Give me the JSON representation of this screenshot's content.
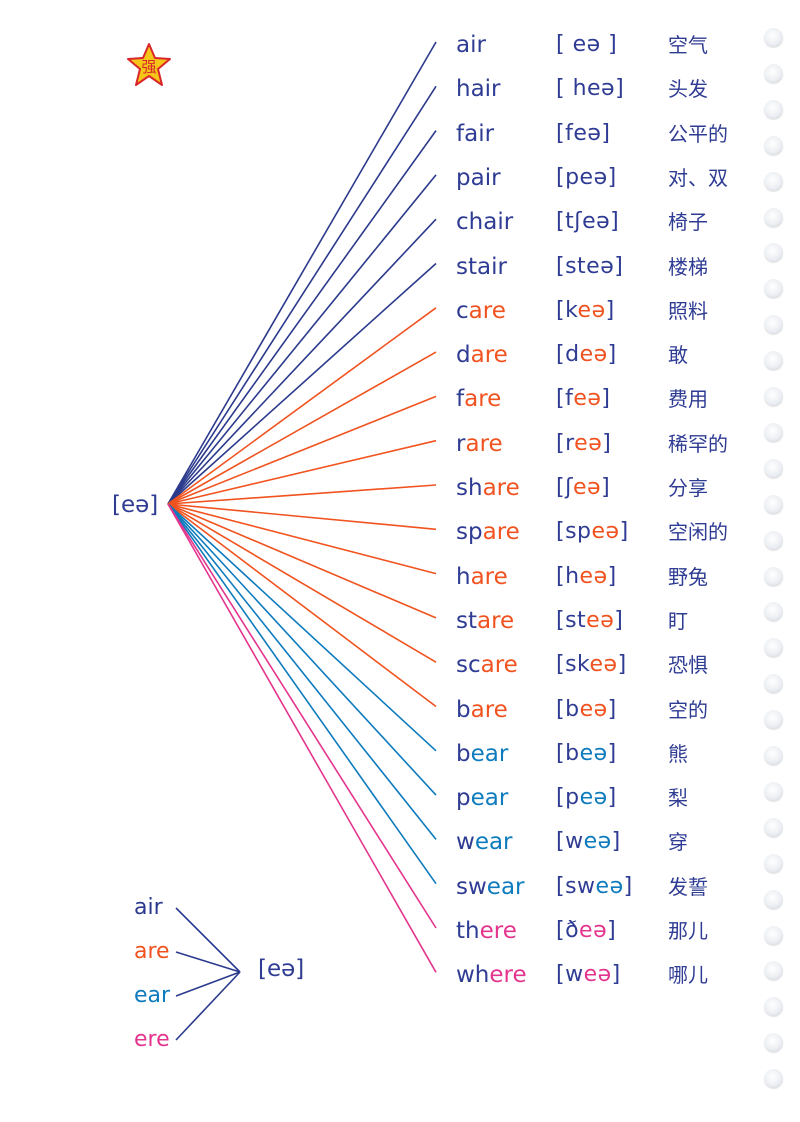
{
  "badge": {
    "text": "强",
    "icon": "star-icon",
    "fill": "#f5c518",
    "stroke": "#d8262b"
  },
  "hub_ipa": "[eə]",
  "colors": {
    "air": "#2b3a8c",
    "are": "#f0531f",
    "ear": "#0d7bbd",
    "ere": "#e4358e"
  },
  "rows": [
    {
      "pre": "air",
      "hl": "",
      "post": "",
      "group": "air",
      "ipa_pre": "[ eə ]",
      "ipa_hl": "",
      "ipa_post": "",
      "cn": "空气"
    },
    {
      "pre": "hair",
      "hl": "",
      "post": "",
      "group": "air",
      "ipa_pre": "[ heə]",
      "ipa_hl": "",
      "ipa_post": "",
      "cn": "头发"
    },
    {
      "pre": "fair",
      "hl": "",
      "post": "",
      "group": "air",
      "ipa_pre": "[feə]",
      "ipa_hl": "",
      "ipa_post": "",
      "cn": "公平的"
    },
    {
      "pre": "pair",
      "hl": "",
      "post": "",
      "group": "air",
      "ipa_pre": "[peə]",
      "ipa_hl": "",
      "ipa_post": "",
      "cn": "对、双"
    },
    {
      "pre": "chair",
      "hl": "",
      "post": "",
      "group": "air",
      "ipa_pre": "[tʃeə]",
      "ipa_hl": "",
      "ipa_post": "",
      "cn": "椅子"
    },
    {
      "pre": "stair",
      "hl": "",
      "post": "",
      "group": "air",
      "ipa_pre": "[steə]",
      "ipa_hl": "",
      "ipa_post": "",
      "cn": "楼梯"
    },
    {
      "pre": "c",
      "hl": "are",
      "post": "",
      "group": "are",
      "ipa_pre": "[k",
      "ipa_hl": "eə",
      "ipa_post": "]",
      "cn": "照料"
    },
    {
      "pre": "d",
      "hl": "are",
      "post": "",
      "group": "are",
      "ipa_pre": "[d",
      "ipa_hl": "eə",
      "ipa_post": "]",
      "cn": "敢"
    },
    {
      "pre": "f",
      "hl": "are",
      "post": "",
      "group": "are",
      "ipa_pre": "[f",
      "ipa_hl": "eə",
      "ipa_post": "]",
      "cn": "费用"
    },
    {
      "pre": "r",
      "hl": "are",
      "post": "",
      "group": "are",
      "ipa_pre": "[r",
      "ipa_hl": "eə",
      "ipa_post": "]",
      "cn": "稀罕的"
    },
    {
      "pre": "sh",
      "hl": "are",
      "post": "",
      "group": "are",
      "ipa_pre": "[ʃ",
      "ipa_hl": "eə",
      "ipa_post": "]",
      "cn": "分享"
    },
    {
      "pre": "sp",
      "hl": "are",
      "post": "",
      "group": "are",
      "ipa_pre": "[sp",
      "ipa_hl": "eə",
      "ipa_post": "]",
      "cn": "空闲的"
    },
    {
      "pre": "h",
      "hl": "are",
      "post": "",
      "group": "are",
      "ipa_pre": "[h",
      "ipa_hl": "eə",
      "ipa_post": "]",
      "cn": "野兔"
    },
    {
      "pre": "st",
      "hl": "are",
      "post": "",
      "group": "are",
      "ipa_pre": "[st",
      "ipa_hl": "eə",
      "ipa_post": "]",
      "cn": "盯"
    },
    {
      "pre": "sc",
      "hl": "are",
      "post": "",
      "group": "are",
      "ipa_pre": "[sk",
      "ipa_hl": "eə",
      "ipa_post": "]",
      "cn": "恐惧"
    },
    {
      "pre": "b",
      "hl": "are",
      "post": "",
      "group": "are",
      "ipa_pre": "[b",
      "ipa_hl": "eə",
      "ipa_post": "]",
      "cn": "空的"
    },
    {
      "pre": "b",
      "hl": "ear",
      "post": "",
      "group": "ear",
      "ipa_pre": "[b",
      "ipa_hl": "eə",
      "ipa_post": "]",
      "cn": "熊"
    },
    {
      "pre": "p",
      "hl": "ear",
      "post": "",
      "group": "ear",
      "ipa_pre": "[p",
      "ipa_hl": "eə",
      "ipa_post": "]",
      "cn": "梨"
    },
    {
      "pre": "w",
      "hl": "ear",
      "post": "",
      "group": "ear",
      "ipa_pre": "[w",
      "ipa_hl": "eə",
      "ipa_post": "]",
      "cn": "穿"
    },
    {
      "pre": "sw",
      "hl": "ear",
      "post": "",
      "group": "ear",
      "ipa_pre": "[sw",
      "ipa_hl": "eə",
      "ipa_post": "]",
      "cn": "发誓"
    },
    {
      "pre": "th",
      "hl": "ere",
      "post": "",
      "group": "ere",
      "ipa_pre": "[ð",
      "ipa_hl": "eə",
      "ipa_post": "]",
      "cn": "那儿"
    },
    {
      "pre": "wh",
      "hl": "ere",
      "post": "",
      "group": "ere",
      "ipa_pre": "[w",
      "ipa_hl": "eə",
      "ipa_post": "]",
      "cn": "哪儿"
    }
  ],
  "summary": {
    "spellings": [
      {
        "text": "air",
        "group": "air"
      },
      {
        "text": "are",
        "group": "are"
      },
      {
        "text": "ear",
        "group": "ear"
      },
      {
        "text": "ere",
        "group": "ere"
      }
    ],
    "target": "[eə]"
  },
  "binding_holes": 30
}
